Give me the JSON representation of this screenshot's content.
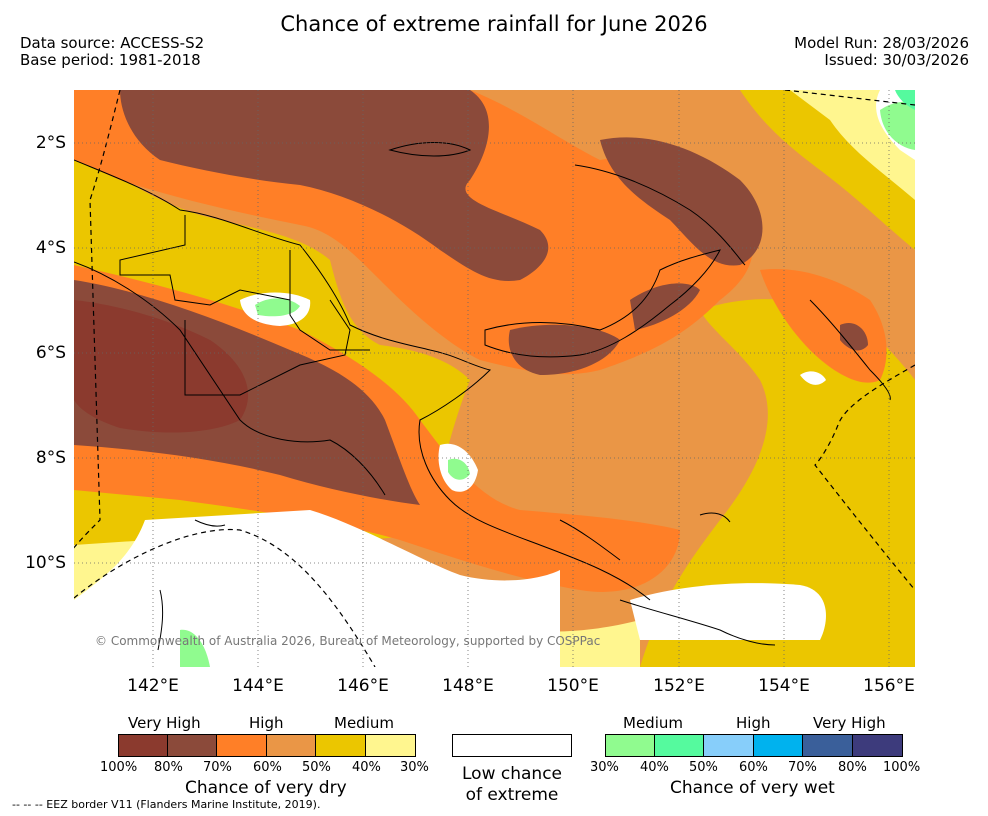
{
  "header": {
    "title": "Chance of extreme rainfall for June 2026",
    "data_source": "Data source: ACCESS-S2",
    "base_period": "Base period: 1981-2018",
    "model_run": "Model Run: 28/03/2026",
    "issued": "Issued: 30/03/2026"
  },
  "map": {
    "copyright": "© Commonwealth of Australia 2026, Bureau of Meteorology, supported by COSPPac",
    "lat_labels": [
      "2°S",
      "4°S",
      "6°S",
      "8°S",
      "10°S"
    ],
    "lon_labels": [
      "142°E",
      "144°E",
      "146°E",
      "148°E",
      "150°E",
      "152°E",
      "154°E",
      "156°E"
    ],
    "colors": {
      "very_high_dry_100": "#8b3a2e",
      "very_high_dry_80": "#8b4a3a",
      "high_dry_70": "#ff7f27",
      "high_dry_60": "#ea9646",
      "medium_dry_50": "#ebc600",
      "medium_dry_40": "#fff68f",
      "low": "#ffffff",
      "medium_wet_30": "#90fb8f",
      "medium_wet_40": "#55fa9e"
    }
  },
  "legend": {
    "dry": {
      "categories": [
        "Very High",
        "High",
        "Medium"
      ],
      "percents": [
        "100%",
        "80%",
        "70%",
        "60%",
        "50%",
        "40%",
        "30%"
      ],
      "colors": [
        "#8b3a2e",
        "#8b4a3a",
        "#ff7f27",
        "#ea9646",
        "#ebc600",
        "#fff68f"
      ],
      "title": "Chance of very dry"
    },
    "low": {
      "line1": "Low chance",
      "line2": "of extreme"
    },
    "wet": {
      "categories": [
        "Medium",
        "High",
        "Very High"
      ],
      "percents": [
        "30%",
        "40%",
        "50%",
        "60%",
        "70%",
        "80%",
        "100%"
      ],
      "colors": [
        "#90fb8f",
        "#55fa9e",
        "#87cefa",
        "#00b2ee",
        "#3a5f9a",
        "#3d3b7c"
      ],
      "title": "Chance of very wet"
    }
  },
  "footer": {
    "eez_note": "--  --  -- EEZ border V11 (Flanders Marine Institute, 2019)."
  }
}
